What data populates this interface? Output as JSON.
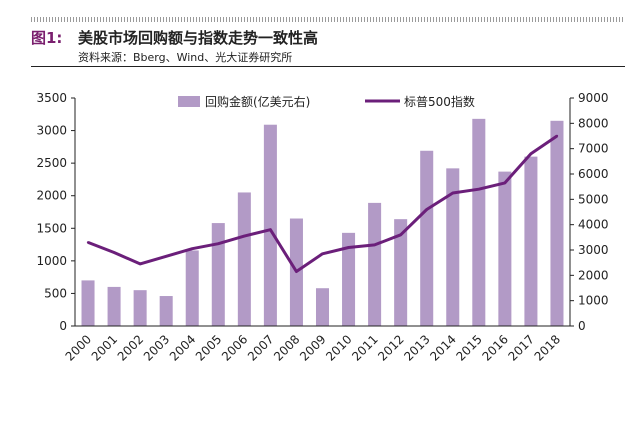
{
  "header": {
    "figure_label": "图1:",
    "title": "美股市场回购额与指数走势一致性高",
    "source": "资料来源：Bberg、Wind、光大证券研究所"
  },
  "chart_data": {
    "type": "bar",
    "categories": [
      "2000",
      "2001",
      "2002",
      "2003",
      "2004",
      "2005",
      "2006",
      "2007",
      "2008",
      "2009",
      "2010",
      "2011",
      "2012",
      "2013",
      "2014",
      "2015",
      "2016",
      "2017",
      "2018"
    ],
    "series": [
      {
        "name": "回购金额(亿美元右)",
        "type": "bar",
        "axis": "left",
        "color": "#b29ac6",
        "values": [
          700,
          600,
          550,
          460,
          1160,
          1580,
          2050,
          3090,
          1650,
          580,
          1430,
          1890,
          1640,
          2690,
          2420,
          3180,
          2370,
          2600,
          3150
        ]
      },
      {
        "name": "标普500指数",
        "type": "line",
        "axis": "right",
        "color": "#6b1f7a",
        "values": [
          3300,
          2900,
          2450,
          2750,
          3050,
          3250,
          3550,
          3800,
          2150,
          2850,
          3100,
          3200,
          3600,
          4600,
          5250,
          5400,
          5650,
          6800,
          7500
        ]
      }
    ],
    "y_left": {
      "min": 0,
      "max": 3500,
      "ticks": [
        0,
        500,
        1000,
        1500,
        2000,
        2500,
        3000,
        3500
      ]
    },
    "y_right": {
      "min": 0,
      "max": 9000,
      "ticks": [
        0,
        1000,
        2000,
        3000,
        4000,
        5000,
        6000,
        7000,
        8000,
        9000
      ]
    },
    "grid": false,
    "legend_position": "top"
  }
}
